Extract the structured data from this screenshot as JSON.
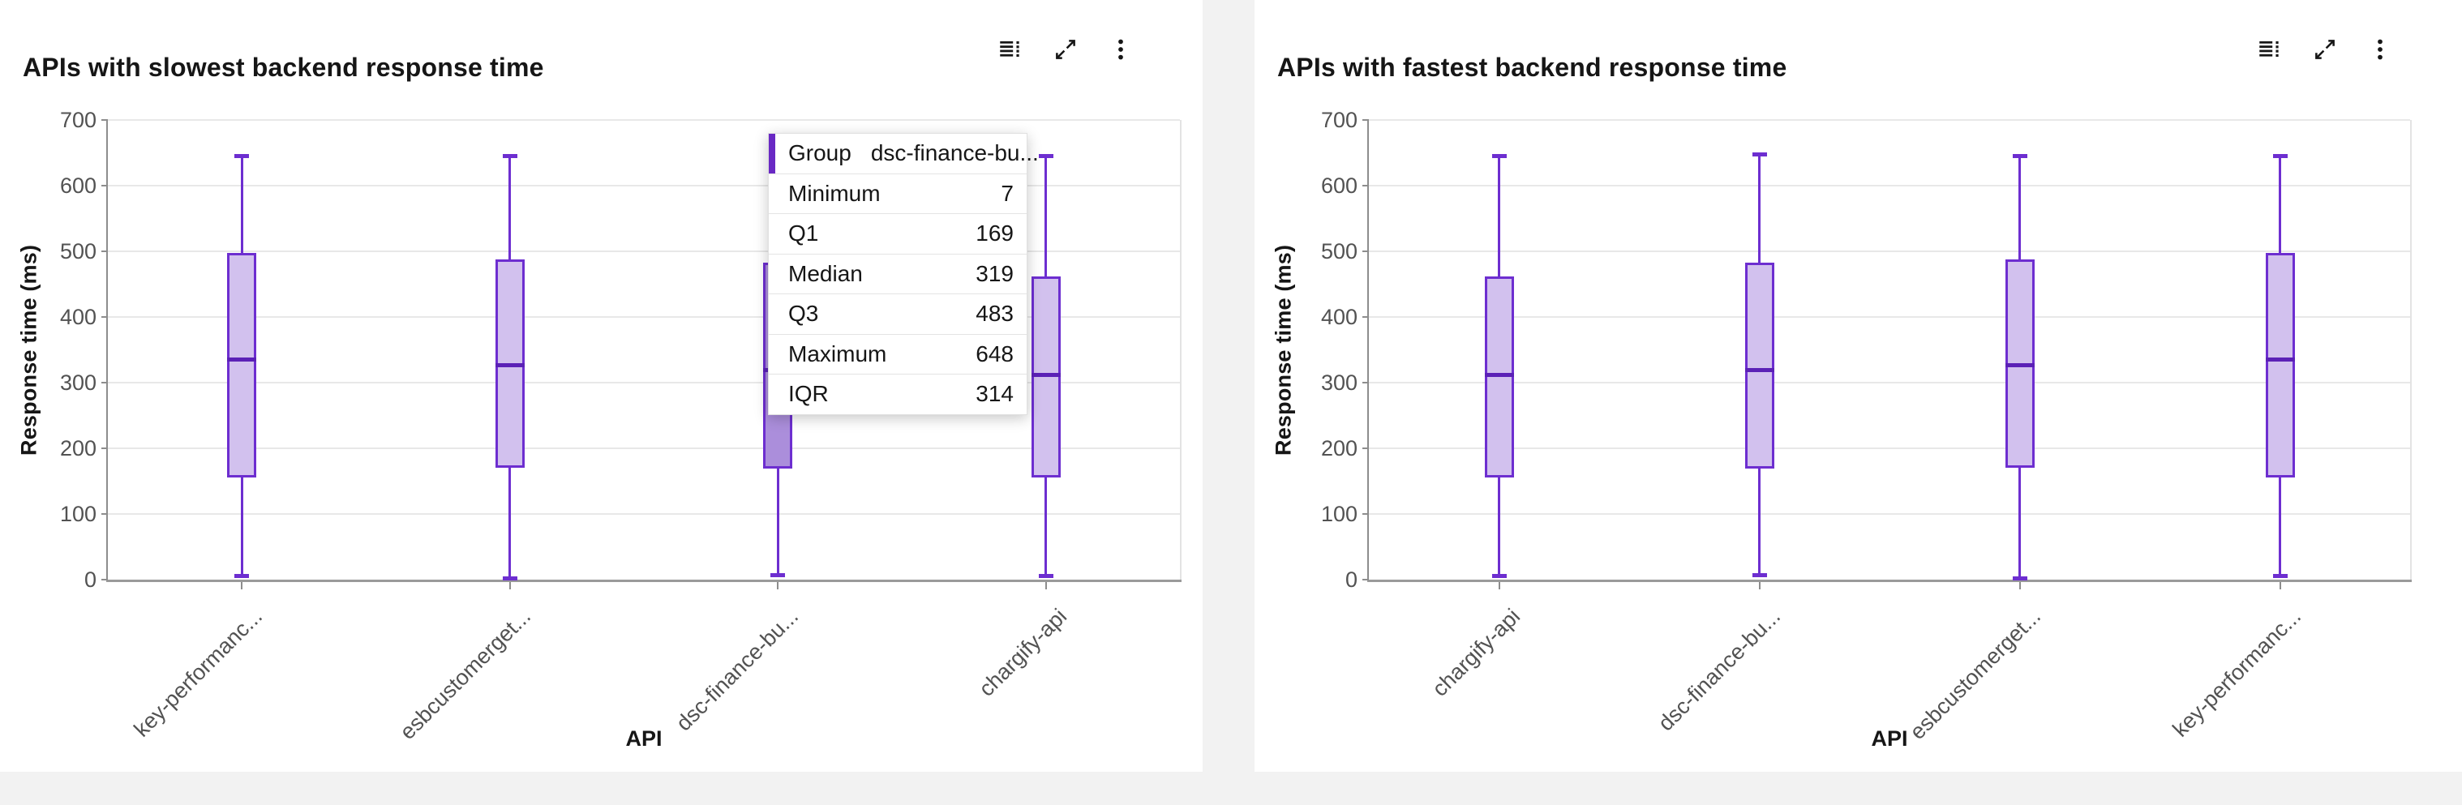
{
  "colors": {
    "page_bg": "#f2f2f2",
    "card_bg": "#ffffff",
    "box_stroke": "#6d2ed0",
    "box_fill": "#d2c1ee",
    "box_fill_hover": "#ab8edb",
    "median": "#5b21b6",
    "grid": "#e8e8e8",
    "axis": "#8d8d8d",
    "tick_text": "#525252",
    "text": "#161616",
    "accent": "#6929c4"
  },
  "cards": [
    {
      "title": "APIs with slowest backend response time",
      "toolbar_icons": [
        "data-table-icon",
        "expand-icon",
        "overflow-menu-icon"
      ]
    },
    {
      "title": "APIs with fastest backend response time",
      "toolbar_icons": [
        "data-table-icon",
        "expand-icon",
        "overflow-menu-icon"
      ]
    }
  ],
  "tooltip": {
    "rows": [
      {
        "label": "Group",
        "value": "dsc-finance-bu..."
      },
      {
        "label": "Minimum",
        "value": "7"
      },
      {
        "label": "Q1",
        "value": "169"
      },
      {
        "label": "Median",
        "value": "319"
      },
      {
        "label": "Q3",
        "value": "483"
      },
      {
        "label": "Maximum",
        "value": "648"
      },
      {
        "label": "IQR",
        "value": "314"
      }
    ]
  },
  "chart_data": [
    {
      "type": "boxplot",
      "title": "APIs with slowest backend response time",
      "xlabel": "API",
      "ylabel": "Response time (ms)",
      "ylim": [
        0,
        700
      ],
      "yticks": [
        0,
        100,
        200,
        300,
        400,
        500,
        600,
        700
      ],
      "grid": true,
      "legend": "none",
      "categories": [
        "key-performanc...",
        "esbcustomerget...",
        "dsc-finance-bu...",
        "chargify-api"
      ],
      "series": [
        {
          "name": "key-performanc...",
          "min": 5,
          "q1": 155,
          "median": 335,
          "q3": 497,
          "max": 645
        },
        {
          "name": "esbcustomerget...",
          "min": 2,
          "q1": 170,
          "median": 327,
          "q3": 488,
          "max": 645
        },
        {
          "name": "dsc-finance-bu...",
          "min": 7,
          "q1": 169,
          "median": 319,
          "q3": 483,
          "max": 648,
          "hovered": true
        },
        {
          "name": "chargify-api",
          "min": 5,
          "q1": 155,
          "median": 312,
          "q3": 462,
          "max": 645
        }
      ]
    },
    {
      "type": "boxplot",
      "title": "APIs with fastest backend response time",
      "xlabel": "API",
      "ylabel": "Response time (ms)",
      "ylim": [
        0,
        700
      ],
      "yticks": [
        0,
        100,
        200,
        300,
        400,
        500,
        600,
        700
      ],
      "grid": true,
      "legend": "none",
      "categories": [
        "chargify-api",
        "dsc-finance-bu...",
        "esbcustomerget...",
        "key-performanc..."
      ],
      "series": [
        {
          "name": "chargify-api",
          "min": 5,
          "q1": 155,
          "median": 312,
          "q3": 462,
          "max": 645
        },
        {
          "name": "dsc-finance-bu...",
          "min": 7,
          "q1": 169,
          "median": 319,
          "q3": 483,
          "max": 648
        },
        {
          "name": "esbcustomerget...",
          "min": 2,
          "q1": 170,
          "median": 327,
          "q3": 488,
          "max": 645
        },
        {
          "name": "key-performanc...",
          "min": 5,
          "q1": 155,
          "median": 335,
          "q3": 497,
          "max": 645
        }
      ]
    }
  ]
}
